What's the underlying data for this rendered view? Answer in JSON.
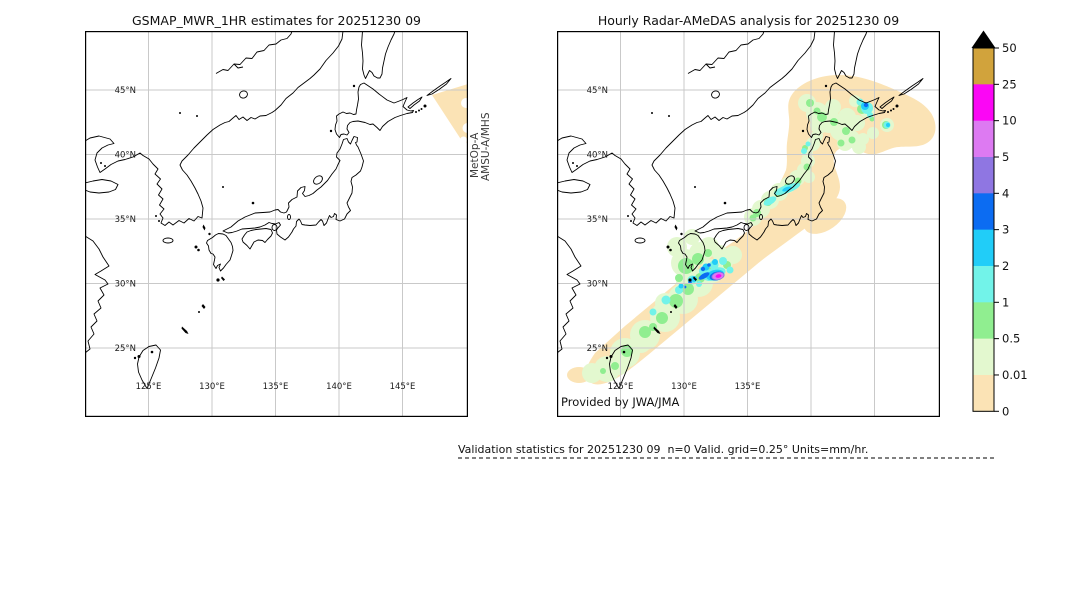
{
  "left_panel": {
    "title": "GSMAP_MWR_1HR estimates for 20251230 09",
    "satellite_label": {
      "line1": "MetOp-A",
      "line2": "AMSU-A/MHS"
    }
  },
  "right_panel": {
    "title": "Hourly Radar-AMeDAS analysis for 20251230 09",
    "credit": "Provided by JWA/JMA"
  },
  "axes": {
    "lat_labels": [
      "45°N",
      "40°N",
      "35°N",
      "30°N",
      "25°N"
    ],
    "lon_labels_left": [
      "125°E",
      "130°E",
      "135°E",
      "140°E",
      "145°E"
    ],
    "lon_labels_right": [
      "125°E",
      "130°E",
      "135°E"
    ]
  },
  "colorbar": {
    "tick_labels": [
      "50",
      "25",
      "10",
      "5",
      "4",
      "3",
      "2",
      "1",
      "0.5",
      "0.01",
      "0"
    ],
    "levels_mm_per_hr": [
      0,
      0.01,
      0.5,
      1,
      2,
      3,
      4,
      5,
      10,
      25,
      50
    ],
    "colors_top_to_bottom": [
      "#d1a33c",
      "#fb06f5",
      "#dd7af2",
      "#8f76e2",
      "#0c6cf2",
      "#21cdf8",
      "#72f3e9",
      "#90ee90",
      "#e3f8cf",
      "#fbe3b5"
    ],
    "overflow_marker_color": "#000000"
  },
  "footer": {
    "validation_text": "Validation statistics for 20251230 09  n=0 Valid. grid=0.25° Units=mm/hr."
  },
  "style": {
    "grid_color": "#c9c9c9",
    "coast_color": "#000000",
    "swath_fill": "#fbe3b5",
    "frame_color": "#000000",
    "background": "#ffffff"
  }
}
